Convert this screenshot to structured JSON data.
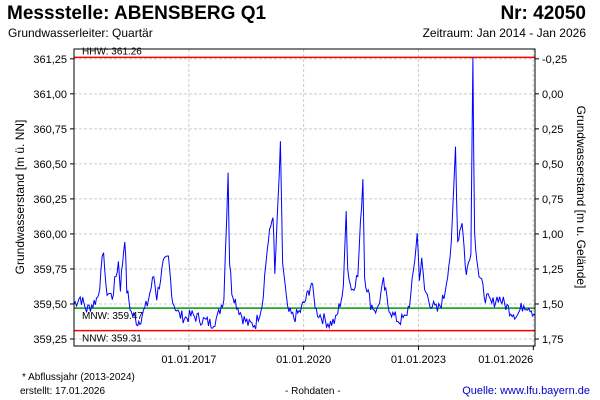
{
  "header": {
    "title": "Messstelle: ABENSBERG Q1",
    "number": "Nr: 42050",
    "subtitle": "Grundwasserleiter: Quartär",
    "period": "Zeitraum: Jan 2014 - Jan 2026"
  },
  "footer": {
    "footnote": "*  Abflussjahr (2013-2024)",
    "created": "erstellt:  17.01.2026",
    "raw_data": "- Rohdaten -",
    "source": "Quelle: www.lfu.bayern.de"
  },
  "colors": {
    "series": "#0000ff",
    "reference_lines": "#ff0000",
    "mnw_line": "#009900",
    "grid": "#cccccc"
  },
  "chart_data": {
    "type": "line",
    "title": "Messstelle: ABENSBERG Q1",
    "ylabel": "Grundwasserstand [m ü. NN]",
    "y2label": "Grundwasserstand [m u. Gelände]",
    "ylim": [
      359.25,
      361.25
    ],
    "y_ticks": [
      "359,25",
      "359,50",
      "359,75",
      "360,00",
      "360,25",
      "360,50",
      "360,75",
      "361,00",
      "361,25"
    ],
    "y_tick_values": [
      359.25,
      359.5,
      359.75,
      360.0,
      360.25,
      360.5,
      360.75,
      361.0,
      361.25
    ],
    "y2_ticks": [
      "1,75",
      "1,50",
      "1,25",
      "1,00",
      "0,75",
      "0,50",
      "0,25",
      "0,00",
      "-0,25"
    ],
    "x_ticks": [
      "01.01.2017",
      "01.01.2020",
      "01.01.2023",
      "01.01.2026"
    ],
    "x_tick_values": [
      "2017-01-01",
      "2020-01-01",
      "2023-01-01",
      "2026-01-01"
    ],
    "xlim": [
      "2014-01-01",
      "2026-01-17"
    ],
    "grid": true,
    "reference_lines": [
      {
        "label": "HHW: 361.26",
        "value": 361.26
      },
      {
        "label": "MNW: 359.47",
        "value": 359.47
      },
      {
        "label": "NNW: 359.31",
        "value": 359.31
      }
    ],
    "series": [
      {
        "values": [
          {
            "x": "2014-01-01",
            "y": 359.5
          },
          {
            "x": "2014-03-01",
            "y": 359.55
          },
          {
            "x": "2014-05-01",
            "y": 359.46
          },
          {
            "x": "2014-07-01",
            "y": 359.5
          },
          {
            "x": "2014-08-15",
            "y": 359.55
          },
          {
            "x": "2014-09-15",
            "y": 359.7
          },
          {
            "x": "2014-10-10",
            "y": 359.9
          },
          {
            "x": "2014-11-01",
            "y": 359.6
          },
          {
            "x": "2015-01-01",
            "y": 359.55
          },
          {
            "x": "2015-03-01",
            "y": 359.8
          },
          {
            "x": "2015-03-20",
            "y": 359.62
          },
          {
            "x": "2015-05-01",
            "y": 359.98
          },
          {
            "x": "2015-05-20",
            "y": 359.6
          },
          {
            "x": "2015-07-01",
            "y": 359.44
          },
          {
            "x": "2015-09-01",
            "y": 359.37
          },
          {
            "x": "2015-10-01",
            "y": 359.4
          },
          {
            "x": "2015-12-01",
            "y": 359.5
          },
          {
            "x": "2016-02-01",
            "y": 359.7
          },
          {
            "x": "2016-03-01",
            "y": 359.55
          },
          {
            "x": "2016-05-01",
            "y": 359.78
          },
          {
            "x": "2016-06-20",
            "y": 359.82
          },
          {
            "x": "2016-08-01",
            "y": 359.52
          },
          {
            "x": "2016-10-01",
            "y": 359.42
          },
          {
            "x": "2016-12-01",
            "y": 359.4
          },
          {
            "x": "2017-02-01",
            "y": 359.42
          },
          {
            "x": "2017-04-01",
            "y": 359.4
          },
          {
            "x": "2017-06-01",
            "y": 359.38
          },
          {
            "x": "2017-08-01",
            "y": 359.36
          },
          {
            "x": "2017-10-01",
            "y": 359.4
          },
          {
            "x": "2017-12-01",
            "y": 359.55
          },
          {
            "x": "2018-01-10",
            "y": 360.45
          },
          {
            "x": "2018-01-25",
            "y": 359.8
          },
          {
            "x": "2018-02-15",
            "y": 359.6
          },
          {
            "x": "2018-04-01",
            "y": 359.5
          },
          {
            "x": "2018-06-01",
            "y": 359.4
          },
          {
            "x": "2018-08-01",
            "y": 359.35
          },
          {
            "x": "2018-10-01",
            "y": 359.36
          },
          {
            "x": "2018-12-01",
            "y": 359.5
          },
          {
            "x": "2019-01-20",
            "y": 359.9
          },
          {
            "x": "2019-03-15",
            "y": 360.15
          },
          {
            "x": "2019-04-01",
            "y": 359.7
          },
          {
            "x": "2019-05-25",
            "y": 360.62
          },
          {
            "x": "2019-06-15",
            "y": 359.8
          },
          {
            "x": "2019-08-01",
            "y": 359.45
          },
          {
            "x": "2019-10-01",
            "y": 359.4
          },
          {
            "x": "2019-12-01",
            "y": 359.45
          },
          {
            "x": "2020-02-01",
            "y": 359.55
          },
          {
            "x": "2020-03-15",
            "y": 359.65
          },
          {
            "x": "2020-05-01",
            "y": 359.45
          },
          {
            "x": "2020-07-01",
            "y": 359.4
          },
          {
            "x": "2020-09-01",
            "y": 359.36
          },
          {
            "x": "2020-11-01",
            "y": 359.38
          },
          {
            "x": "2021-01-15",
            "y": 359.6
          },
          {
            "x": "2021-02-10",
            "y": 360.2
          },
          {
            "x": "2021-02-25",
            "y": 359.75
          },
          {
            "x": "2021-04-01",
            "y": 359.6
          },
          {
            "x": "2021-06-01",
            "y": 359.7
          },
          {
            "x": "2021-07-20",
            "y": 360.4
          },
          {
            "x": "2021-08-05",
            "y": 359.7
          },
          {
            "x": "2021-10-01",
            "y": 359.5
          },
          {
            "x": "2021-12-01",
            "y": 359.45
          },
          {
            "x": "2022-02-01",
            "y": 359.65
          },
          {
            "x": "2022-03-15",
            "y": 359.5
          },
          {
            "x": "2022-05-01",
            "y": 359.42
          },
          {
            "x": "2022-07-01",
            "y": 359.38
          },
          {
            "x": "2022-09-01",
            "y": 359.4
          },
          {
            "x": "2022-10-20",
            "y": 359.55
          },
          {
            "x": "2022-12-20",
            "y": 360.0
          },
          {
            "x": "2023-01-10",
            "y": 359.7
          },
          {
            "x": "2023-02-01",
            "y": 359.8
          },
          {
            "x": "2023-03-01",
            "y": 359.6
          },
          {
            "x": "2023-05-01",
            "y": 359.5
          },
          {
            "x": "2023-07-01",
            "y": 359.45
          },
          {
            "x": "2023-09-01",
            "y": 359.55
          },
          {
            "x": "2023-11-10",
            "y": 359.9
          },
          {
            "x": "2023-12-20",
            "y": 360.62
          },
          {
            "x": "2024-01-10",
            "y": 359.95
          },
          {
            "x": "2024-02-20",
            "y": 360.1
          },
          {
            "x": "2024-04-01",
            "y": 359.7
          },
          {
            "x": "2024-05-15",
            "y": 359.9
          },
          {
            "x": "2024-06-03",
            "y": 361.26
          },
          {
            "x": "2024-06-20",
            "y": 360.0
          },
          {
            "x": "2024-08-01",
            "y": 359.7
          },
          {
            "x": "2024-10-01",
            "y": 359.55
          },
          {
            "x": "2024-12-01",
            "y": 359.5
          },
          {
            "x": "2025-02-01",
            "y": 359.55
          },
          {
            "x": "2025-04-01",
            "y": 359.5
          },
          {
            "x": "2025-06-01",
            "y": 359.45
          },
          {
            "x": "2025-08-01",
            "y": 359.42
          },
          {
            "x": "2025-10-01",
            "y": 359.5
          },
          {
            "x": "2025-12-01",
            "y": 359.48
          },
          {
            "x": "2026-01-17",
            "y": 359.42
          }
        ]
      }
    ]
  }
}
